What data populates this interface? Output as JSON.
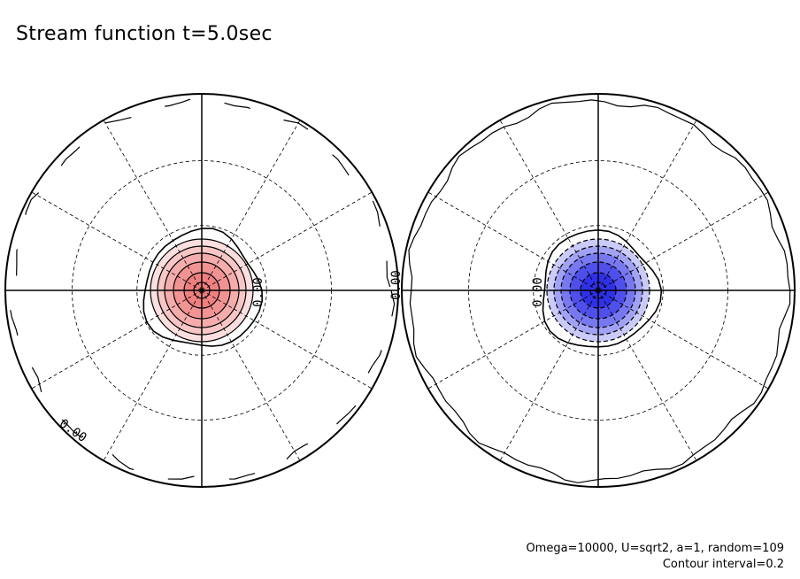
{
  "title": "Stream function t=5.0sec",
  "footer": {
    "params": "Omega=10000, U=sqrt2, a=1, random=109",
    "interval": "Contour interval=0.2"
  },
  "chart_data": [
    {
      "type": "contour",
      "projection": "polar",
      "hemisphere": "left",
      "fill_color": "#f08080",
      "contour_interval": 0.2,
      "center_extremum": "positive",
      "contour_levels": [
        0.0,
        0.2,
        0.4,
        0.6,
        0.8,
        1.0
      ],
      "contour_labels": [
        "0.00",
        "0.00",
        "0.00"
      ],
      "grid": "dashed latitude circles and meridians"
    },
    {
      "type": "contour",
      "projection": "polar",
      "hemisphere": "right",
      "fill_color": "#3030e8",
      "contour_interval": 0.2,
      "center_extremum": "negative",
      "contour_levels": [
        0.0,
        -0.2,
        -0.4,
        -0.6,
        -0.8,
        -1.0
      ],
      "contour_labels": [
        "0.00"
      ],
      "grid": "dashed latitude circles and meridians"
    }
  ]
}
